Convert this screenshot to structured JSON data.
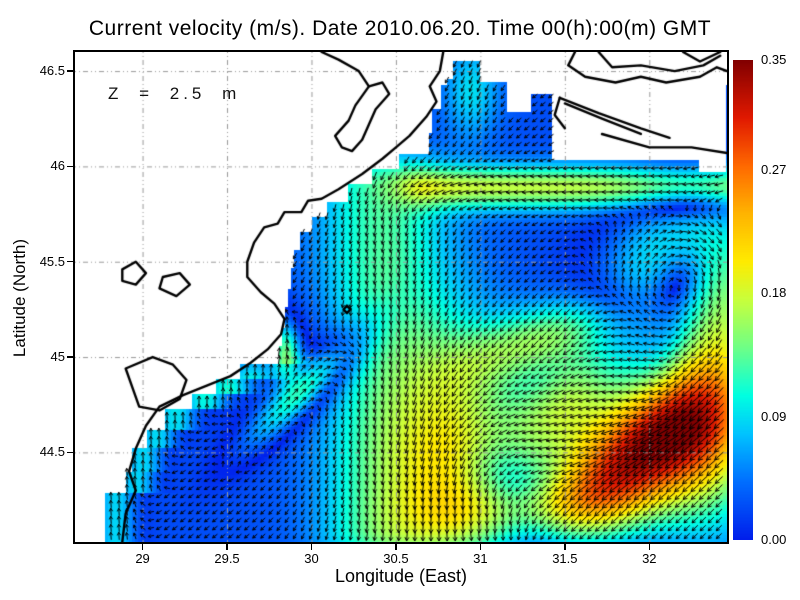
{
  "chart_data": {
    "type": "heatmap",
    "subtype": "vector-field-current-map",
    "title": "Current velocity (m/s). Date 2010.06.20. Time 00(h):00(m) GMT",
    "variable": "current velocity",
    "units": "m/s",
    "date": "2010.06.20",
    "time": "00(h):00(m) GMT",
    "depth_annotation": "Z = 2.5 m",
    "xlabel": "Longitude (East)",
    "ylabel": "Latitude (North)",
    "xlim": [
      28.6,
      32.46
    ],
    "ylim": [
      44.03,
      46.6
    ],
    "xticks": [
      29,
      29.5,
      30,
      30.5,
      31,
      31.5,
      32
    ],
    "yticks": [
      44.5,
      45,
      45.5,
      46,
      46.5
    ],
    "grid": "dotted",
    "legend_position": "none",
    "colorbar": {
      "position": "right",
      "min": 0.0,
      "max": 0.35,
      "label_values": [
        0.35,
        0.27,
        0.18,
        0.09,
        0.0
      ],
      "colormap": "jet"
    },
    "colormap_stops": [
      [
        0.0,
        [
          0,
          30,
          235
        ]
      ],
      [
        0.12,
        [
          0,
          110,
          255
        ]
      ],
      [
        0.22,
        [
          0,
          195,
          255
        ]
      ],
      [
        0.3,
        [
          0,
          255,
          225
        ]
      ],
      [
        0.4,
        [
          110,
          255,
          135
        ]
      ],
      [
        0.5,
        [
          200,
          255,
          60
        ]
      ],
      [
        0.58,
        [
          255,
          235,
          0
        ]
      ],
      [
        0.68,
        [
          255,
          180,
          0
        ]
      ],
      [
        0.78,
        [
          255,
          105,
          0
        ]
      ],
      [
        0.88,
        [
          225,
          25,
          0
        ]
      ],
      [
        1.0,
        [
          130,
          0,
          0
        ]
      ]
    ],
    "flow_features": [
      {
        "name": "background-drift",
        "type": "uniform",
        "u": -0.02,
        "v": -0.015,
        "desc": "weak ~0.025 m/s WSW drift over whole basin"
      },
      {
        "name": "quiet-eddy-ne-of-core",
        "type": "vortex",
        "center": [
          32.1,
          44.95
        ],
        "r0": 0.3,
        "peak": 0.08,
        "rotation": "CW",
        "desc": "blue low-speed anticyclonic center NE of the jet core"
      },
      {
        "name": "quiet-eddy-sw-of-core",
        "type": "vortex",
        "center": [
          31.1,
          44.35
        ],
        "r0": 0.3,
        "peak": 0.08,
        "rotation": "CCW",
        "desc": "blue low-speed center SW of the jet core"
      },
      {
        "name": "eddy-east-mid",
        "type": "vortex",
        "center": [
          32.24,
          45.42
        ],
        "r0": 0.26,
        "peak": 0.09,
        "rotation": "CW",
        "desc": "small blue eddy near 32.2E 45.4N"
      },
      {
        "name": "jet-upper-segment",
        "type": "bump",
        "center": [
          31.45,
          45.12
        ],
        "rx": 0.4,
        "ry": 0.13,
        "rot_deg": 15,
        "dir_deg": 235,
        "speed": 0.13,
        "desc": "yellow-green SW flow near 31.3E 45.1N"
      },
      {
        "name": "jet-mid-segment",
        "type": "bump",
        "center": [
          31.55,
          44.8
        ],
        "rx": 0.3,
        "ry": 0.15,
        "rot_deg": 40,
        "dir_deg": 225,
        "speed": 0.12
      },
      {
        "name": "main-jet-core",
        "type": "bump",
        "center": [
          31.85,
          44.45
        ],
        "rx": 0.42,
        "ry": 0.2,
        "rot_deg": 30,
        "dir_deg": 215,
        "speed": 0.26,
        "desc": "dark-red 0.33-0.35 m/s SW jet core near 31.85E 44.45N"
      },
      {
        "name": "jet-right-edge-extension",
        "type": "bump",
        "center": [
          32.35,
          44.55
        ],
        "rx": 0.25,
        "ry": 0.35,
        "rot_deg": 0,
        "dir_deg": 230,
        "speed": 0.12
      },
      {
        "name": "jet-bottom-westward",
        "type": "bump",
        "center": [
          31.35,
          44.2
        ],
        "rx": 0.45,
        "ry": 0.13,
        "rot_deg": 5,
        "dir_deg": 255,
        "speed": 0.12
      },
      {
        "name": "mid-shelf-cyan-column",
        "type": "bump",
        "center": [
          30.85,
          44.75
        ],
        "rx": 0.25,
        "ry": 0.45,
        "rot_deg": 0,
        "dir_deg": 250,
        "speed": 0.07
      },
      {
        "name": "westward-band-north",
        "type": "zonal_jet",
        "lat0": 45.89,
        "sigma": 0.085,
        "u": -0.15,
        "lon_range": [
          30.7,
          32.46
        ],
        "desc": "green-yellow westward band along 45.9N"
      },
      {
        "name": "southward-mid-current",
        "type": "meridional_jet",
        "lon0": 30.42,
        "sigma": 0.28,
        "v": -0.11,
        "lat_range": [
          44.1,
          45.88
        ],
        "desc": "cyan southward current near 30.4E"
      },
      {
        "name": "coastal-counter-current",
        "type": "coastal_jet",
        "offset": 0.06,
        "sigma": 0.1,
        "u": 0.015,
        "v": 0.1,
        "lat_max": 44.8,
        "desc": "northward flow hugging SW coast"
      },
      {
        "name": "ne-streak-south-of-delta",
        "type": "bump",
        "center": [
          29.95,
          44.82
        ],
        "rx": 0.35,
        "ry": 0.08,
        "rot_deg": 40,
        "dir_deg": 45,
        "speed": 0.13,
        "desc": "cyan NE-ward streak 29.6-30.3E"
      },
      {
        "name": "delta-coastal-spot",
        "type": "bump",
        "center": [
          29.85,
          45.04
        ],
        "rx": 0.06,
        "ry": 0.11,
        "rot_deg": 0,
        "dir_deg": 80,
        "speed": 0.11,
        "desc": "yellow-green spot at Danube delta coast"
      },
      {
        "name": "w-shelf-east-drift",
        "type": "bump",
        "center": [
          29.7,
          45.0
        ],
        "rx": 0.4,
        "ry": 0.2,
        "rot_deg": 0,
        "dir_deg": 70,
        "speed": 0.05
      },
      {
        "name": "north-strip-flow",
        "type": "bump",
        "center": [
          30.95,
          46.4
        ],
        "rx": 0.12,
        "ry": 0.18,
        "rot_deg": 0,
        "dir_deg": 260,
        "speed": 0.07
      }
    ],
    "sea_grid_boundary": {
      "west": [
        [
          46.6,
          30.8
        ],
        [
          46.42,
          30.76
        ],
        [
          46.3,
          30.72
        ],
        [
          46.18,
          30.7
        ],
        [
          46.06,
          30.52
        ],
        [
          45.98,
          30.36
        ],
        [
          45.9,
          30.22
        ],
        [
          45.82,
          30.1
        ],
        [
          45.74,
          30.0
        ],
        [
          45.66,
          29.94
        ],
        [
          45.56,
          29.9
        ],
        [
          45.46,
          29.88
        ],
        [
          45.36,
          29.86
        ],
        [
          45.26,
          29.84
        ],
        [
          45.16,
          29.82
        ],
        [
          45.06,
          29.8
        ],
        [
          44.96,
          29.58
        ],
        [
          44.88,
          29.44
        ],
        [
          44.8,
          29.3
        ],
        [
          44.72,
          29.13
        ],
        [
          44.62,
          29.02
        ],
        [
          44.52,
          28.94
        ],
        [
          44.4,
          28.9
        ],
        [
          44.28,
          28.78
        ]
      ],
      "north": [
        [
          28.6,
          30.7,
          46.42
        ],
        [
          30.7,
          30.84,
          46.46
        ],
        [
          30.84,
          31.0,
          46.56
        ],
        [
          31.0,
          31.16,
          46.44
        ],
        [
          31.16,
          31.3,
          46.28
        ],
        [
          31.3,
          31.42,
          46.38
        ],
        [
          31.42,
          32.3,
          46.03
        ],
        [
          32.3,
          32.46,
          45.97
        ]
      ]
    },
    "coastline": {
      "paths": [
        {
          "name": "main-coast",
          "closed": false,
          "points": [
            [
              30.78,
              46.6
            ],
            [
              30.76,
              46.5
            ],
            [
              30.7,
              46.42
            ],
            [
              30.74,
              46.34
            ],
            [
              30.68,
              46.26
            ],
            [
              30.58,
              46.16
            ],
            [
              30.5,
              46.1
            ],
            [
              30.42,
              46.04
            ],
            [
              30.3,
              45.96
            ],
            [
              30.16,
              45.88
            ],
            [
              30.06,
              45.83
            ],
            [
              29.98,
              45.82
            ],
            [
              29.94,
              45.76
            ],
            [
              29.84,
              45.76
            ],
            [
              29.8,
              45.7
            ],
            [
              29.72,
              45.68
            ],
            [
              29.66,
              45.6
            ],
            [
              29.62,
              45.5
            ],
            [
              29.62,
              45.42
            ],
            [
              29.7,
              45.34
            ],
            [
              29.78,
              45.28
            ],
            [
              29.84,
              45.2
            ],
            [
              29.82,
              45.12
            ],
            [
              29.74,
              45.04
            ],
            [
              29.64,
              44.97
            ],
            [
              29.52,
              44.9
            ],
            [
              29.38,
              44.85
            ],
            [
              29.24,
              44.8
            ],
            [
              29.1,
              44.74
            ],
            [
              29.02,
              44.64
            ],
            [
              28.96,
              44.52
            ],
            [
              28.92,
              44.4
            ],
            [
              28.96,
              44.3
            ],
            [
              28.9,
              44.18
            ],
            [
              28.88,
              44.03
            ]
          ]
        },
        {
          "name": "dniester-liman",
          "closed": true,
          "points": [
            [
              30.18,
              46.1
            ],
            [
              30.14,
              46.16
            ],
            [
              30.22,
              46.24
            ],
            [
              30.26,
              46.32
            ],
            [
              30.34,
              46.42
            ],
            [
              30.42,
              46.44
            ],
            [
              30.46,
              46.38
            ],
            [
              30.38,
              46.3
            ],
            [
              30.34,
              46.22
            ],
            [
              30.3,
              46.14
            ],
            [
              30.24,
              46.08
            ]
          ]
        },
        {
          "name": "liman-spur",
          "closed": false,
          "points": [
            [
              30.34,
              46.42
            ],
            [
              30.28,
              46.5
            ],
            [
              30.16,
              46.56
            ],
            [
              30.06,
              46.6
            ]
          ]
        },
        {
          "name": "ne-estuary-upper",
          "closed": false,
          "points": [
            [
              31.56,
              46.6
            ],
            [
              31.52,
              46.53
            ],
            [
              31.62,
              46.47
            ],
            [
              31.8,
              46.44
            ],
            [
              31.95,
              46.47
            ],
            [
              32.1,
              46.44
            ],
            [
              32.3,
              46.47
            ],
            [
              32.4,
              46.52
            ],
            [
              32.46,
              46.5
            ]
          ]
        },
        {
          "name": "ne-estuary-top",
          "closed": false,
          "points": [
            [
              31.7,
              46.6
            ],
            [
              31.78,
              46.52
            ],
            [
              31.95,
              46.53
            ],
            [
              32.15,
              46.5
            ],
            [
              32.32,
              46.53
            ],
            [
              32.42,
              46.58
            ]
          ]
        },
        {
          "name": "ne-corner-wiggle",
          "closed": false,
          "points": [
            [
              32.2,
              46.6
            ],
            [
              32.3,
              46.55
            ],
            [
              32.42,
              46.6
            ]
          ]
        },
        {
          "name": "kinburn-spit-outer",
          "closed": false,
          "points": [
            [
              31.47,
              46.36
            ],
            [
              31.7,
              46.28
            ],
            [
              31.95,
              46.2
            ],
            [
              32.12,
              46.15
            ]
          ]
        },
        {
          "name": "kinburn-spit-inner",
          "closed": false,
          "points": [
            [
              31.5,
              46.33
            ],
            [
              31.72,
              46.25
            ],
            [
              31.95,
              46.17
            ]
          ]
        },
        {
          "name": "spit-hook",
          "closed": false,
          "points": [
            [
              31.47,
              46.36
            ],
            [
              31.44,
              46.27
            ],
            [
              31.5,
              46.2
            ]
          ]
        },
        {
          "name": "ne-lower-coast",
          "closed": false,
          "points": [
            [
              31.72,
              46.17
            ],
            [
              32.0,
              46.1
            ],
            [
              32.25,
              46.1
            ],
            [
              32.46,
              46.07
            ]
          ]
        },
        {
          "name": "razelm-lagoon",
          "closed": true,
          "points": [
            [
              29.06,
              45.0
            ],
            [
              29.18,
              44.96
            ],
            [
              29.26,
              44.88
            ],
            [
              29.22,
              44.78
            ],
            [
              29.1,
              44.72
            ],
            [
              28.98,
              44.74
            ],
            [
              28.94,
              44.84
            ],
            [
              28.9,
              44.94
            ]
          ]
        },
        {
          "name": "danube-lake-west",
          "closed": true,
          "points": [
            [
              28.88,
              45.46
            ],
            [
              28.96,
              45.5
            ],
            [
              29.02,
              45.44
            ],
            [
              28.96,
              45.38
            ],
            [
              28.88,
              45.4
            ]
          ]
        },
        {
          "name": "danube-lake-east",
          "closed": true,
          "points": [
            [
              29.12,
              45.42
            ],
            [
              29.22,
              45.44
            ],
            [
              29.28,
              45.38
            ],
            [
              29.2,
              45.32
            ],
            [
              29.1,
              45.36
            ]
          ]
        },
        {
          "name": "snake-island",
          "closed": true,
          "points": [
            [
              30.19,
              45.25
            ],
            [
              30.21,
              45.27
            ],
            [
              30.23,
              45.25
            ],
            [
              30.21,
              45.23
            ]
          ]
        }
      ]
    }
  },
  "colors": {
    "background": "#ffffff",
    "land": "#ffffff",
    "coastline": "#000000",
    "arrows": "#000000",
    "gridlines": "#999999",
    "frame": "#000000",
    "text": "#000000"
  }
}
